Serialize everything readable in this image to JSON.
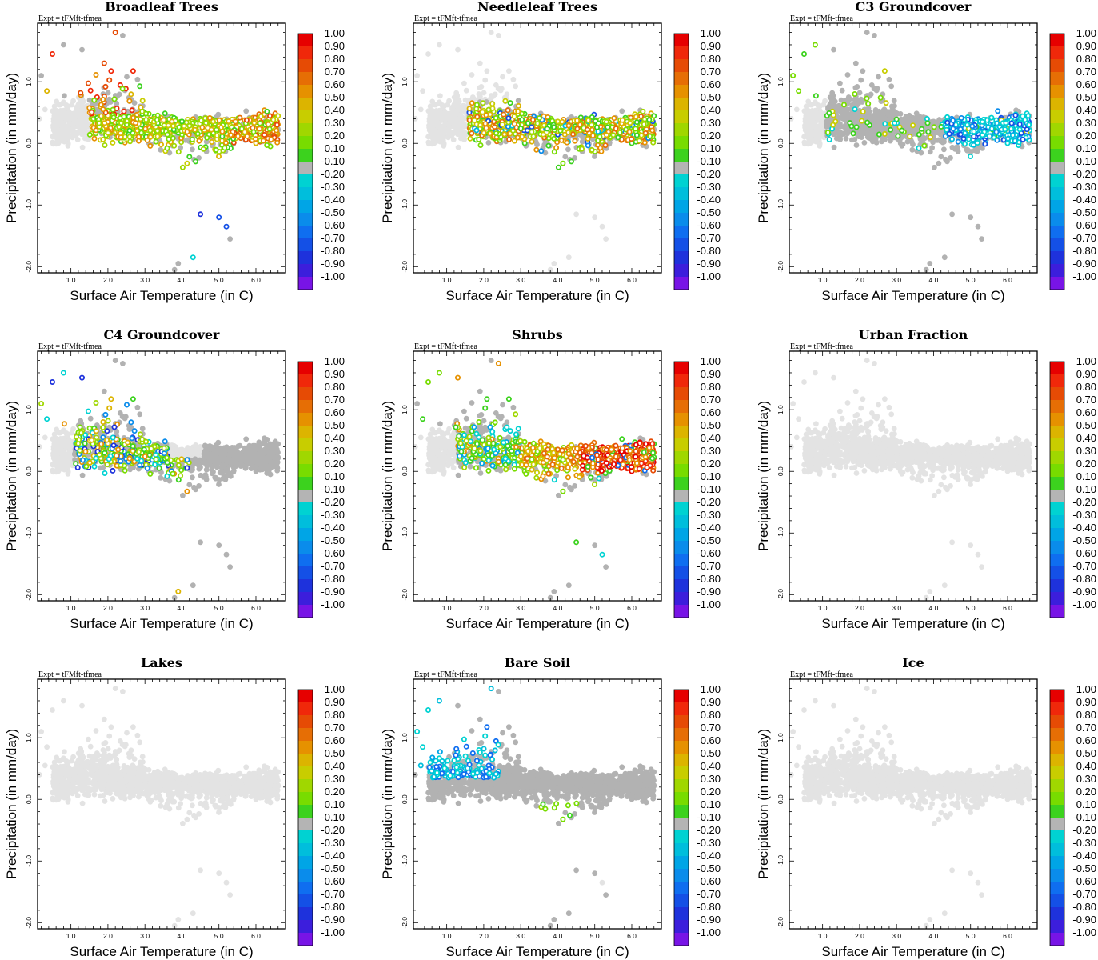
{
  "chart_data": {
    "type": "scatter",
    "experiment_label": "Expt = tFMft-tfmea",
    "xlabel": "Surface Air Temperature (in C)",
    "ylabel": "Precipitation (in mm/day)",
    "xlim": [
      0.1,
      6.8
    ],
    "ylim": [
      -2.1,
      1.95
    ],
    "x_ticks": [
      "1.0",
      "2.0",
      "3.0",
      "4.0",
      "5.0",
      "6.0"
    ],
    "y_ticks": [
      "-2.0",
      "-1.0",
      "0.0",
      "1.0"
    ],
    "colorbar": {
      "labels": [
        "1.00",
        "0.90",
        "0.80",
        "0.70",
        "0.60",
        "0.50",
        "0.40",
        "0.30",
        "0.20",
        "0.10",
        "-0.10",
        "-0.20",
        "-0.30",
        "-0.40",
        "-0.50",
        "-0.60",
        "-0.70",
        "-0.80",
        "-0.90",
        "-1.00"
      ],
      "colors": [
        "#e60000",
        "#f0280a",
        "#e64b05",
        "#e66e05",
        "#e69100",
        "#dcb400",
        "#c8cd00",
        "#a0d700",
        "#78dc00",
        "#3cd21e",
        "#b4b4b4",
        "#00d2d2",
        "#00bedc",
        "#00a5e6",
        "#0a8ceb",
        "#0f6ef0",
        "#1450e6",
        "#1e32dc",
        "#3c1edc",
        "#7814e6"
      ]
    },
    "colors": {
      "background_point": "#e3e3e3",
      "neutral_point": "#b2b2b2"
    },
    "panels": [
      {
        "title": "Broadleaf Trees",
        "pattern": "broadleaf"
      },
      {
        "title": "Needleleaf Trees",
        "pattern": "needleleaf"
      },
      {
        "title": "C3 Groundcover",
        "pattern": "c3"
      },
      {
        "title": "C4 Groundcover",
        "pattern": "c4"
      },
      {
        "title": "Shrubs",
        "pattern": "shrubs"
      },
      {
        "title": "Urban Fraction",
        "pattern": "none"
      },
      {
        "title": "Lakes",
        "pattern": "none"
      },
      {
        "title": "Bare Soil",
        "pattern": "baresoil"
      },
      {
        "title": "Ice",
        "pattern": "none"
      }
    ]
  }
}
